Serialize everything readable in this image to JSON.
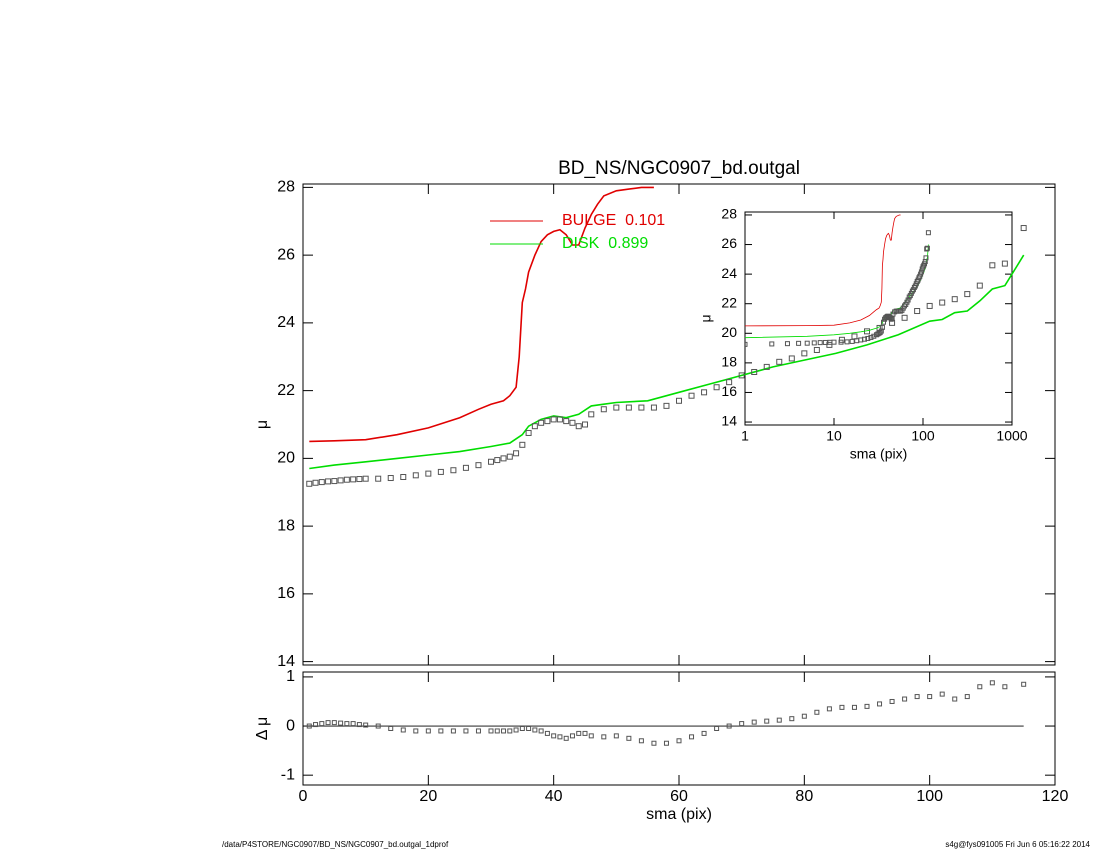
{
  "chart_data": [
    {
      "type": "line",
      "title": "BD_NS/NGC0907_bd.outgal",
      "ylabel": "μ",
      "xlim": [
        0,
        120
      ],
      "xticks": [
        0,
        20,
        40,
        60,
        80,
        100,
        120
      ],
      "ylim": [
        13.9,
        28.1
      ],
      "yticks": [
        14,
        16,
        18,
        20,
        22,
        24,
        26,
        28
      ],
      "marker_color": "#555555",
      "x": [
        1,
        2,
        3,
        4,
        5,
        6,
        7,
        8,
        9,
        10,
        12,
        14,
        16,
        18,
        20,
        22,
        24,
        26,
        28,
        30,
        31,
        32,
        33,
        34,
        35,
        36,
        37,
        38,
        39,
        40,
        41,
        42,
        43,
        44,
        45,
        46,
        48,
        50,
        52,
        54,
        56,
        58,
        60,
        62,
        64,
        66,
        68,
        70,
        72,
        74,
        76,
        78,
        80,
        82,
        84,
        86,
        88,
        90,
        92,
        94,
        96,
        98,
        100,
        102,
        104,
        106,
        108,
        110,
        112,
        115
      ],
      "values": [
        19.25,
        19.28,
        19.3,
        19.32,
        19.33,
        19.35,
        19.37,
        19.38,
        19.39,
        19.4,
        19.4,
        19.42,
        19.45,
        19.5,
        19.55,
        19.6,
        19.65,
        19.72,
        19.8,
        19.9,
        19.95,
        20.0,
        20.05,
        20.15,
        20.4,
        20.75,
        20.95,
        21.05,
        21.1,
        21.15,
        21.15,
        21.1,
        21.05,
        20.95,
        21.0,
        21.3,
        21.45,
        21.5,
        21.5,
        21.5,
        21.5,
        21.55,
        21.7,
        21.85,
        21.95,
        22.1,
        22.25,
        22.45,
        22.55,
        22.7,
        22.85,
        22.95,
        23.1,
        23.2,
        23.35,
        23.5,
        23.6,
        23.75,
        23.85,
        24.0,
        24.15,
        24.35,
        24.5,
        24.6,
        24.7,
        24.85,
        25.1,
        25.7,
        25.75,
        26.8
      ],
      "series": [
        {
          "name": "BULGE  0.101",
          "color": "#e00000",
          "x": [
            1,
            5,
            10,
            15,
            20,
            25,
            28,
            30,
            32,
            33,
            34,
            34.5,
            35,
            35.5,
            36,
            37,
            38,
            39,
            40,
            41,
            42,
            43,
            44,
            45,
            46,
            47,
            48,
            50,
            52,
            54,
            56
          ],
          "values": [
            20.5,
            20.52,
            20.55,
            20.7,
            20.9,
            21.2,
            21.45,
            21.6,
            21.7,
            21.85,
            22.1,
            23.0,
            24.6,
            25.0,
            25.5,
            26.0,
            26.4,
            26.6,
            26.7,
            26.75,
            26.6,
            26.3,
            26.3,
            26.8,
            27.2,
            27.5,
            27.75,
            27.9,
            27.95,
            28.0,
            28.0
          ]
        },
        {
          "name": "DISK  0.899",
          "color": "#00dd00",
          "x": [
            1,
            5,
            10,
            15,
            20,
            25,
            30,
            33,
            35,
            36,
            38,
            40,
            42,
            44,
            46,
            48,
            50,
            55,
            60,
            65,
            70,
            75,
            80,
            85,
            90,
            95,
            100,
            102,
            104,
            106,
            108,
            110,
            112,
            115
          ],
          "values": [
            19.7,
            19.8,
            19.9,
            20.0,
            20.1,
            20.2,
            20.35,
            20.45,
            20.7,
            20.95,
            21.15,
            21.25,
            21.2,
            21.3,
            21.55,
            21.6,
            21.65,
            21.7,
            21.95,
            22.2,
            22.45,
            22.7,
            22.9,
            23.1,
            23.35,
            23.65,
            24.05,
            24.1,
            24.3,
            24.35,
            24.65,
            25.0,
            25.1,
            26.0
          ]
        }
      ]
    },
    {
      "type": "scatter",
      "ylabel": "Δ μ",
      "xlabel": "sma (pix)",
      "xlim": [
        0,
        120
      ],
      "xticks": [
        0,
        20,
        40,
        60,
        80,
        100,
        120
      ],
      "ylim": [
        -1.2,
        1.1
      ],
      "yticks": [
        -1,
        0,
        1
      ],
      "values": [
        0,
        0.03,
        0.05,
        0.07,
        0.07,
        0.06,
        0.05,
        0.05,
        0.03,
        0.02,
        0,
        -0.05,
        -0.08,
        -0.1,
        -0.1,
        -0.1,
        -0.1,
        -0.1,
        -0.1,
        -0.1,
        -0.1,
        -0.1,
        -0.1,
        -0.08,
        -0.05,
        -0.05,
        -0.08,
        -0.1,
        -0.15,
        -0.2,
        -0.22,
        -0.25,
        -0.2,
        -0.15,
        -0.15,
        -0.2,
        -0.22,
        -0.2,
        -0.25,
        -0.3,
        -0.35,
        -0.35,
        -0.3,
        -0.22,
        -0.15,
        -0.05,
        0,
        0.05,
        0.08,
        0.1,
        0.12,
        0.15,
        0.2,
        0.28,
        0.35,
        0.38,
        0.38,
        0.4,
        0.45,
        0.5,
        0.55,
        0.6,
        0.6,
        0.65,
        0.55,
        0.6,
        0.8,
        0.88,
        0.8,
        0.85
      ]
    },
    {
      "type": "line",
      "log_x": true,
      "ylabel": "μ",
      "xlabel": "sma (pix)",
      "xlim": [
        1,
        1000
      ],
      "xticks": [
        1,
        10,
        100,
        1000
      ],
      "ylim": [
        13.8,
        28.2
      ],
      "yticks": [
        14,
        16,
        18,
        20,
        22,
        24,
        26,
        28
      ]
    }
  ],
  "footer": {
    "left": "/data/P4STORE/NGC0907/BD_NS/NGC0907_bd.outgal_1dprof",
    "right": "s4g@fys091005  Fri Jun  6 05:16:22 2014"
  }
}
